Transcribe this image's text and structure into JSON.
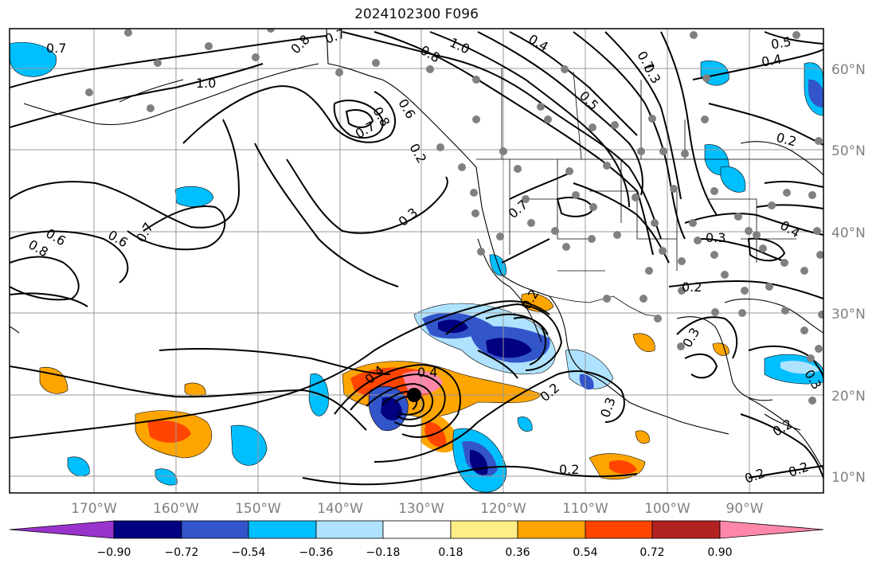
{
  "title": "2024102300 F096",
  "lon_labels": [
    "170°W",
    "160°W",
    "150°W",
    "140°W",
    "130°W",
    "120°W",
    "110°W",
    "100°W",
    "90°W"
  ],
  "lat_labels": [
    "60°N",
    "50°N",
    "40°N",
    "30°N",
    "20°N",
    "10°N"
  ],
  "colorbar": {
    "ticks": [
      "−0.90",
      "−0.72",
      "−0.54",
      "−0.36",
      "−0.18",
      "0.18",
      "0.36",
      "0.54",
      "0.72",
      "0.90"
    ],
    "colors": [
      "#9933cc",
      "#000080",
      "#3355cc",
      "#00bfff",
      "#aee2ff",
      "#ffffff",
      "#ffee88",
      "#ffa500",
      "#ff4500",
      "#b22222",
      "#ff88aa"
    ]
  },
  "contour_labels": [
    "0.7",
    "0.8",
    "0.7",
    "1.0",
    "0.8",
    "0.4",
    "0.5",
    "0.5",
    "0.4",
    "1.0",
    "0.7",
    "0.8",
    "0.6",
    "0.7",
    "0.3",
    "0.2",
    "0.2",
    "0.7",
    "0.3",
    "0.6",
    "0.7",
    "0.6",
    "0.8",
    "0.3",
    "0.4",
    "0.2",
    "0.3",
    "0.2",
    "0.2",
    "0.3",
    "0.4",
    "0.4",
    "0.2",
    "0.3",
    "0.2",
    "0.2",
    "0.2"
  ]
}
